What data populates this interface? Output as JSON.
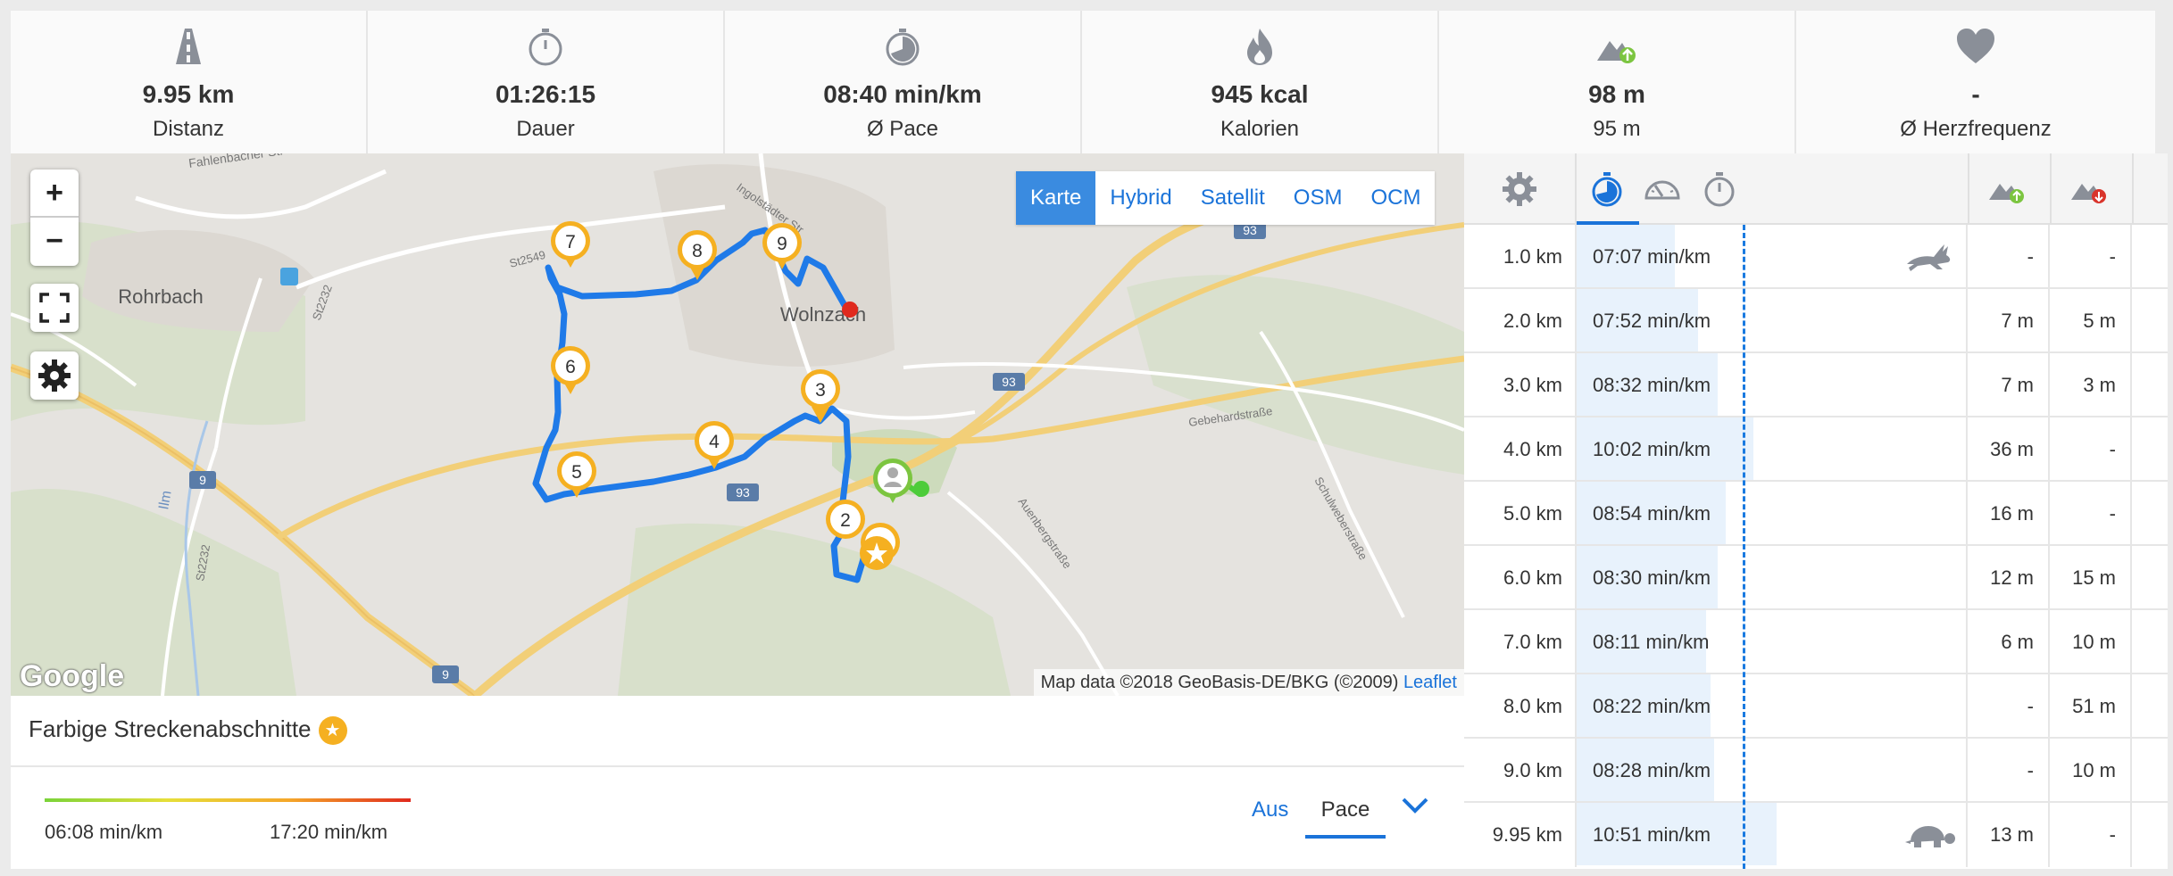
{
  "stats": [
    {
      "icon": "road-icon",
      "value": "9.95 km",
      "label": "Distanz"
    },
    {
      "icon": "stopwatch-icon",
      "value": "01:26:15",
      "label": "Dauer"
    },
    {
      "icon": "pace-clock-icon",
      "value": "08:40 min/km",
      "label": "Ø Pace"
    },
    {
      "icon": "flame-icon",
      "value": "945 kcal",
      "label": "Kalorien"
    },
    {
      "icon": "elevation-up-icon",
      "value": "98 m",
      "label": "95 m"
    },
    {
      "icon": "heart-icon",
      "value": "-",
      "label": "Ø Herzfrequenz"
    }
  ],
  "map": {
    "zoom_in": "+",
    "zoom_out": "−",
    "layers": [
      "Karte",
      "Hybrid",
      "Satellit",
      "OSM",
      "OCM"
    ],
    "active_layer": "Karte",
    "attribution": "Map data ©2018 GeoBasis-DE/BKG (©2009)",
    "leaflet": "Leaflet",
    "google": "Google",
    "places": [
      "Rohrbach",
      "Wolnzach",
      "Fahlenbacher Str",
      "Ingolstädter Str",
      "St2549",
      "St2232",
      "Ilm",
      "Gebehardstraße",
      "Schulweberstraße",
      "Auenbergstraße"
    ],
    "road_shields": [
      "93",
      "93",
      "93",
      "9",
      "9"
    ],
    "km_markers": [
      "2",
      "3",
      "4",
      "5",
      "6",
      "7",
      "8",
      "9"
    ],
    "colors": {
      "route": "#1f7ae8",
      "marker": "#f5b021",
      "start": "#7cc540",
      "end": "#e02a1e",
      "highway": "#f2cf78"
    }
  },
  "segments": {
    "title": "Farbige Streckenabschnitte",
    "min_label": "06:08 min/km",
    "max_label": "17:20 min/km",
    "option_off": "Aus",
    "option_pace": "Pace"
  },
  "splits": {
    "header_icons": [
      "gear-icon",
      "pace-clock-icon",
      "speedometer-icon",
      "stopwatch-icon",
      "elevation-up-icon",
      "elevation-down-icon"
    ],
    "average_pace_fraction": 0.36,
    "rows": [
      {
        "km": "1.0 km",
        "pace": "07:07 min/km",
        "pace_fraction": 0.25,
        "up": "-",
        "down": "-",
        "badge": "fastest"
      },
      {
        "km": "2.0 km",
        "pace": "07:52 min/km",
        "pace_fraction": 0.31,
        "up": "7 m",
        "down": "5 m"
      },
      {
        "km": "3.0 km",
        "pace": "08:32 min/km",
        "pace_fraction": 0.36,
        "up": "7 m",
        "down": "3 m"
      },
      {
        "km": "4.0 km",
        "pace": "10:02 min/km",
        "pace_fraction": 0.45,
        "up": "36 m",
        "down": "-"
      },
      {
        "km": "5.0 km",
        "pace": "08:54 min/km",
        "pace_fraction": 0.38,
        "up": "16 m",
        "down": "-"
      },
      {
        "km": "6.0 km",
        "pace": "08:30 min/km",
        "pace_fraction": 0.36,
        "up": "12 m",
        "down": "15 m"
      },
      {
        "km": "7.0 km",
        "pace": "08:11 min/km",
        "pace_fraction": 0.33,
        "up": "6 m",
        "down": "10 m"
      },
      {
        "km": "8.0 km",
        "pace": "08:22 min/km",
        "pace_fraction": 0.34,
        "up": "-",
        "down": "51 m"
      },
      {
        "km": "9.0 km",
        "pace": "08:28 min/km",
        "pace_fraction": 0.35,
        "up": "-",
        "down": "10 m"
      },
      {
        "km": "9.95 km",
        "pace": "10:51 min/km",
        "pace_fraction": 0.51,
        "up": "13 m",
        "down": "-",
        "badge": "slowest"
      }
    ]
  }
}
